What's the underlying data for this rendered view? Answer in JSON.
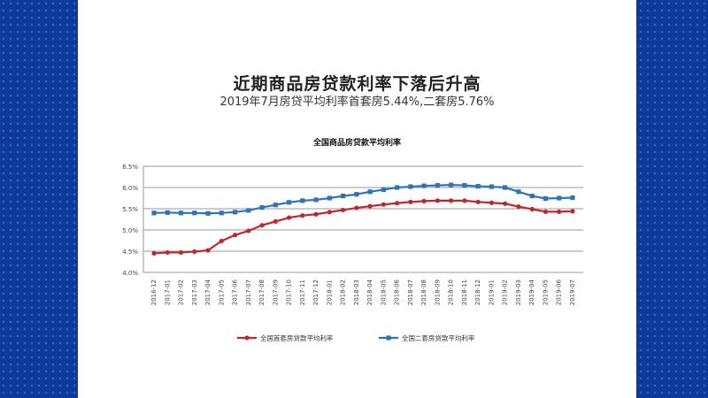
{
  "slide": {
    "title": "近期商品房贷款利率下落后升高",
    "subtitle": "2019年7月房贷平均利率首套房5.44%,二套房5.76%"
  },
  "colors": {
    "series1": "#c0272d",
    "series2": "#2e75b6",
    "background_side": "#0f3a9a"
  },
  "chart_data": {
    "type": "line",
    "title": "全国商品房贷款平均利率",
    "xlabel": "",
    "ylabel": "",
    "ylim": [
      4.0,
      6.5
    ],
    "yticks": [
      "4.0%",
      "4.5%",
      "5.0%",
      "5.5%",
      "6.0%",
      "6.5%"
    ],
    "ytick_values": [
      4.0,
      4.5,
      5.0,
      5.5,
      6.0,
      6.5
    ],
    "legend_position": "bottom",
    "categories": [
      "2016-12",
      "2017-01",
      "2017-02",
      "2017-03",
      "2017-04",
      "2017-05",
      "2017-06",
      "2017-07",
      "2017-08",
      "2017-09",
      "2017-10",
      "2017-11",
      "2017-12",
      "2018-01",
      "2018-02",
      "2018-03",
      "2018-04",
      "2018-05",
      "2018-06",
      "2018-07",
      "2018-08",
      "2018-09",
      "2018-10",
      "2018-11",
      "2018-12",
      "2019-01",
      "2019-02",
      "2019-03",
      "2019-04",
      "2019-05",
      "2019-06",
      "2019-07"
    ],
    "series": [
      {
        "name": "全国首套房贷款平均利率",
        "values": [
          4.45,
          4.47,
          4.47,
          4.49,
          4.52,
          4.74,
          4.88,
          4.98,
          5.11,
          5.2,
          5.29,
          5.34,
          5.37,
          5.42,
          5.47,
          5.52,
          5.56,
          5.6,
          5.63,
          5.66,
          5.68,
          5.69,
          5.69,
          5.69,
          5.66,
          5.64,
          5.62,
          5.55,
          5.49,
          5.43,
          5.43,
          5.44
        ]
      },
      {
        "name": "全国二套房贷款平均利率",
        "values": [
          5.4,
          5.41,
          5.4,
          5.4,
          5.39,
          5.4,
          5.42,
          5.46,
          5.53,
          5.59,
          5.65,
          5.69,
          5.71,
          5.75,
          5.8,
          5.84,
          5.9,
          5.95,
          6.0,
          6.02,
          6.04,
          6.05,
          6.06,
          6.05,
          6.03,
          6.02,
          6.0,
          5.9,
          5.8,
          5.74,
          5.75,
          5.76
        ]
      }
    ]
  }
}
